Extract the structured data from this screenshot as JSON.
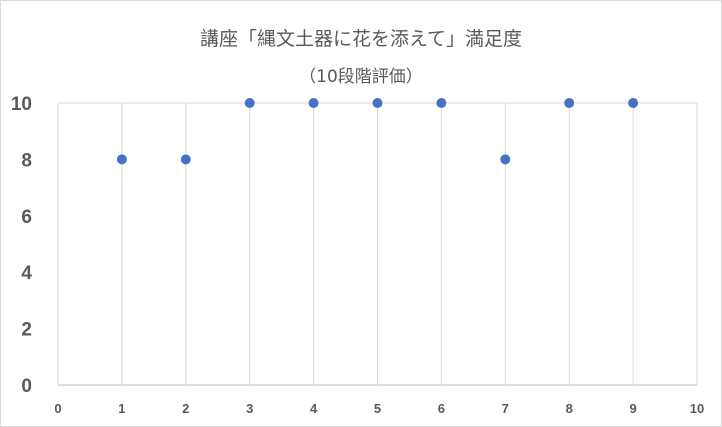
{
  "chart_data": {
    "type": "scatter",
    "title_line1": "講座「縄文土器に花を添えて」満足度",
    "title_line2": "（10段階評価）",
    "xlabel": "",
    "ylabel": "",
    "xlim": [
      0,
      10
    ],
    "ylim": [
      0,
      10
    ],
    "x_ticks": [
      0,
      1,
      2,
      3,
      4,
      5,
      6,
      7,
      8,
      9,
      10
    ],
    "y_ticks": [
      0,
      2,
      4,
      6,
      8,
      10
    ],
    "grid": "vertical",
    "legend": "none",
    "color": "#4472c4",
    "points": [
      {
        "x": 1,
        "y": 8
      },
      {
        "x": 2,
        "y": 8
      },
      {
        "x": 3,
        "y": 10
      },
      {
        "x": 4,
        "y": 10
      },
      {
        "x": 5,
        "y": 10
      },
      {
        "x": 6,
        "y": 10
      },
      {
        "x": 7,
        "y": 8
      },
      {
        "x": 8,
        "y": 10
      },
      {
        "x": 9,
        "y": 10
      }
    ]
  }
}
